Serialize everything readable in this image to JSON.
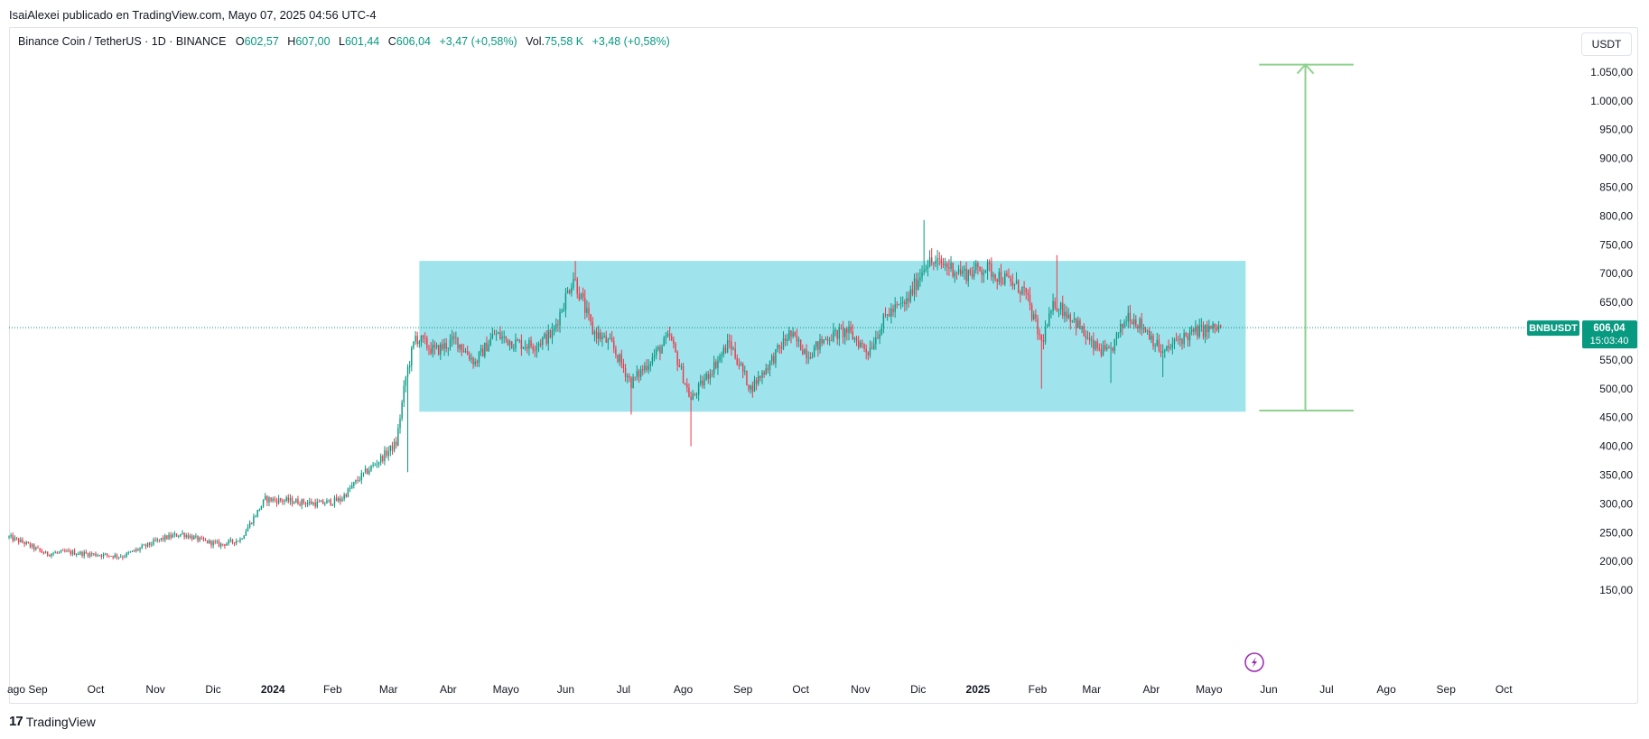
{
  "header": {
    "published_by": "IsaiAlexei publicado en TradingView.com, Mayo 07, 2025 04:56 UTC-4"
  },
  "legend": {
    "symbol": "Binance Coin / TetherUS · 1D · BINANCE",
    "o_label": "O",
    "o_value": "602,57",
    "h_label": "H",
    "h_value": "607,00",
    "l_label": "L",
    "l_value": "601,44",
    "c_label": "C",
    "c_value": "606,04",
    "change": "+3,47 (+0,58%)",
    "vol_label": "Vol.",
    "vol_value": "75,58 K",
    "vol_change": "+3,48 (+0,58%)"
  },
  "currency_button": "USDT",
  "price_tag": {
    "symbol": "BNBUSDT",
    "price": "606,04",
    "countdown": "15:03:40"
  },
  "footer": {
    "brand": "TradingView",
    "brand_mark": "17"
  },
  "colors": {
    "up": "#089981",
    "down": "#f23645",
    "range_box": "#9fe3ec",
    "measure": "#8fd18f",
    "price_line": "#089981",
    "grid_text": "#131722"
  },
  "icons": {
    "flash": "lightning-bolt-icon"
  },
  "chart_data": {
    "type": "candlestick",
    "title": "Binance Coin / TetherUS · 1D · BINANCE",
    "ylim": [
      125,
      1100
    ],
    "y_ticks": [
      150,
      200,
      250,
      300,
      350,
      400,
      450,
      500,
      550,
      600,
      650,
      700,
      750,
      800,
      850,
      900,
      950,
      1000,
      1050
    ],
    "y_tick_labels": [
      "150,00",
      "200,00",
      "250,00",
      "300,00",
      "350,00",
      "400,00",
      "450,00",
      "500,00",
      "550,00",
      "600,00",
      "650,00",
      "700,00",
      "750,00",
      "800,00",
      "850,00",
      "900,00",
      "950,00",
      "1.000,00",
      "1.050,00"
    ],
    "x_labels": [
      "ago",
      "Sep",
      "Oct",
      "Nov",
      "Dic",
      "2024",
      "Feb",
      "Mar",
      "Abr",
      "Mayo",
      "Jun",
      "Jul",
      "Ago",
      "Sep",
      "Oct",
      "Nov",
      "Dic",
      "2025",
      "Feb",
      "Mar",
      "Abr",
      "Mayo",
      "Jun",
      "Jul",
      "Ago",
      "Sep",
      "Oct"
    ],
    "bold_x_labels": [
      "2024",
      "2025"
    ],
    "last_price": 606.04,
    "range_box": {
      "start": "2024-03-17",
      "end": "2025-05-20",
      "low": 460,
      "high": 722
    },
    "measure": {
      "date": "2025-06-20",
      "from": 462,
      "to": 1063,
      "start": "2025-05-27",
      "end": "2025-07-15"
    },
    "price_path": [
      [
        "2023-08-17",
        242
      ],
      [
        "2023-08-25",
        232
      ],
      [
        "2023-09-05",
        213
      ],
      [
        "2023-09-15",
        216
      ],
      [
        "2023-10-01",
        212
      ],
      [
        "2023-10-15",
        209
      ],
      [
        "2023-10-25",
        224
      ],
      [
        "2023-11-05",
        240
      ],
      [
        "2023-11-15",
        248
      ],
      [
        "2023-11-25",
        236
      ],
      [
        "2023-12-05",
        229
      ],
      [
        "2023-12-15",
        238
      ],
      [
        "2023-12-28",
        308
      ],
      [
        "2024-01-10",
        305
      ],
      [
        "2024-01-25",
        300
      ],
      [
        "2024-02-05",
        307
      ],
      [
        "2024-02-15",
        345
      ],
      [
        "2024-02-25",
        375
      ],
      [
        "2024-03-05",
        405
      ],
      [
        "2024-03-10",
        520
      ],
      [
        "2024-03-15",
        590
      ],
      [
        "2024-03-25",
        565
      ],
      [
        "2024-04-05",
        585
      ],
      [
        "2024-04-15",
        545
      ],
      [
        "2024-04-25",
        595
      ],
      [
        "2024-05-05",
        580
      ],
      [
        "2024-05-15",
        575
      ],
      [
        "2024-05-25",
        595
      ],
      [
        "2024-06-05",
        695
      ],
      [
        "2024-06-15",
        600
      ],
      [
        "2024-06-25",
        575
      ],
      [
        "2024-07-05",
        510
      ],
      [
        "2024-07-15",
        550
      ],
      [
        "2024-07-25",
        590
      ],
      [
        "2024-08-05",
        480
      ],
      [
        "2024-08-15",
        530
      ],
      [
        "2024-08-25",
        580
      ],
      [
        "2024-09-05",
        500
      ],
      [
        "2024-09-15",
        545
      ],
      [
        "2024-09-25",
        595
      ],
      [
        "2024-10-05",
        560
      ],
      [
        "2024-10-15",
        590
      ],
      [
        "2024-10-25",
        600
      ],
      [
        "2024-11-05",
        565
      ],
      [
        "2024-11-15",
        630
      ],
      [
        "2024-11-25",
        650
      ],
      [
        "2024-12-05",
        720
      ],
      [
        "2024-12-15",
        715
      ],
      [
        "2024-12-25",
        700
      ],
      [
        "2025-01-05",
        710
      ],
      [
        "2025-01-15",
        690
      ],
      [
        "2025-01-25",
        670
      ],
      [
        "2025-02-03",
        580
      ],
      [
        "2025-02-10",
        650
      ],
      [
        "2025-02-20",
        620
      ],
      [
        "2025-03-01",
        575
      ],
      [
        "2025-03-10",
        560
      ],
      [
        "2025-03-20",
        630
      ],
      [
        "2025-03-30",
        600
      ],
      [
        "2025-04-07",
        560
      ],
      [
        "2025-04-15",
        585
      ],
      [
        "2025-04-25",
        600
      ],
      [
        "2025-05-07",
        606
      ]
    ],
    "spikes": [
      [
        "2024-07-05",
        455
      ],
      [
        "2024-08-05",
        400
      ],
      [
        "2024-12-04",
        793
      ],
      [
        "2025-02-03",
        500
      ],
      [
        "2025-02-11",
        732
      ],
      [
        "2025-03-11",
        510
      ],
      [
        "2025-04-07",
        520
      ],
      [
        "2024-03-11",
        355
      ],
      [
        "2024-06-06",
        722
      ]
    ]
  }
}
